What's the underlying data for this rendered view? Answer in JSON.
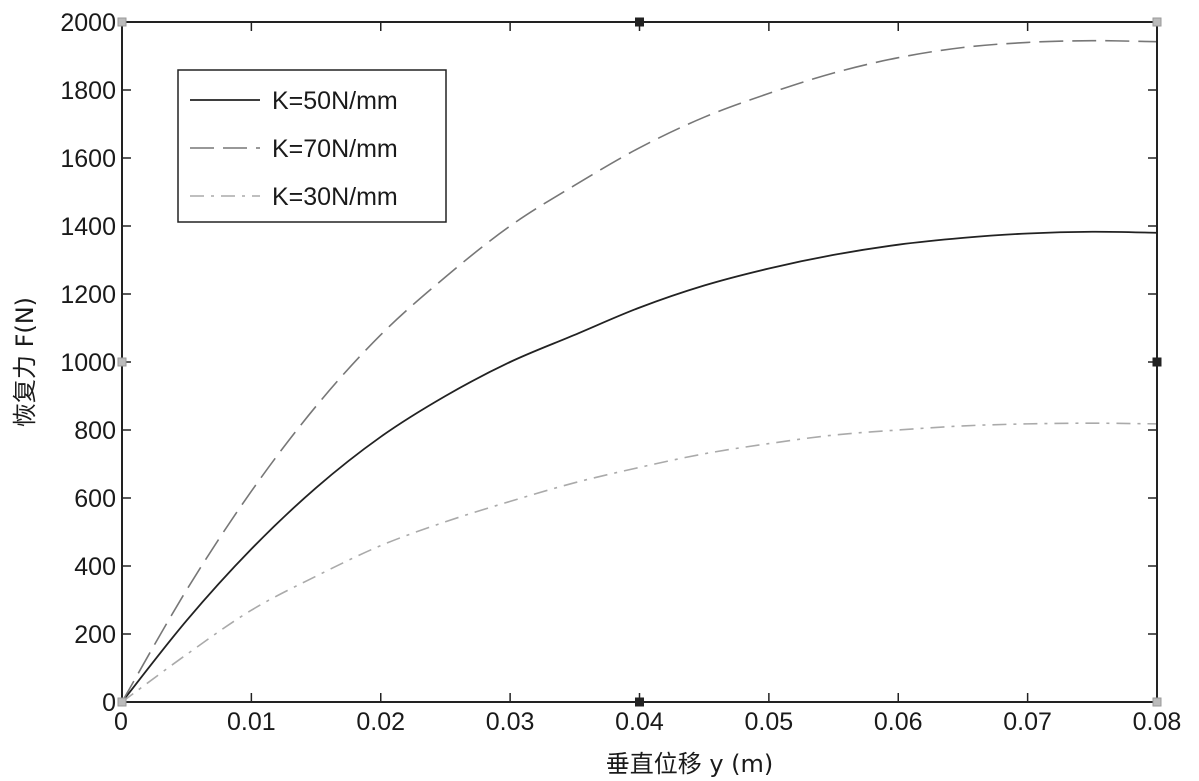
{
  "chart_data": {
    "type": "line",
    "title": "",
    "xlabel": "垂直位移 y (m)",
    "ylabel": "恢复力 F(N)",
    "xlim": [
      0,
      0.08
    ],
    "ylim": [
      0,
      2000
    ],
    "xticks": [
      0,
      0.01,
      0.02,
      0.03,
      0.04,
      0.05,
      0.06,
      0.07,
      0.08
    ],
    "xtick_labels": [
      "0",
      "0.01",
      "0.02",
      "0.03",
      "0.04",
      "0.05",
      "0.06",
      "0.07",
      "0.08"
    ],
    "yticks": [
      0,
      200,
      400,
      600,
      800,
      1000,
      1200,
      1400,
      1600,
      1800,
      2000
    ],
    "ytick_labels": [
      "0",
      "200",
      "400",
      "600",
      "800",
      "1000",
      "1200",
      "1400",
      "1600",
      "1800",
      "2000"
    ],
    "grid": false,
    "legend_position": "top-left",
    "x": [
      0,
      0.005,
      0.01,
      0.015,
      0.02,
      0.025,
      0.03,
      0.035,
      0.04,
      0.045,
      0.05,
      0.055,
      0.06,
      0.065,
      0.07,
      0.075,
      0.08
    ],
    "series": [
      {
        "name": "K=50N/mm",
        "style": "solid",
        "color": "#222222",
        "values": [
          0,
          240,
          450,
          630,
          780,
          900,
          1000,
          1080,
          1160,
          1225,
          1275,
          1315,
          1345,
          1365,
          1378,
          1383,
          1380
        ]
      },
      {
        "name": "K=70N/mm",
        "style": "dashed",
        "color": "#777777",
        "values": [
          0,
          330,
          620,
          870,
          1080,
          1250,
          1400,
          1520,
          1630,
          1720,
          1790,
          1850,
          1895,
          1925,
          1940,
          1945,
          1942
        ]
      },
      {
        "name": "K=30N/mm",
        "style": "dashdot",
        "color": "#aaaaaa",
        "values": [
          0,
          140,
          270,
          370,
          460,
          530,
          590,
          645,
          690,
          730,
          760,
          785,
          800,
          812,
          818,
          820,
          818
        ]
      }
    ]
  }
}
